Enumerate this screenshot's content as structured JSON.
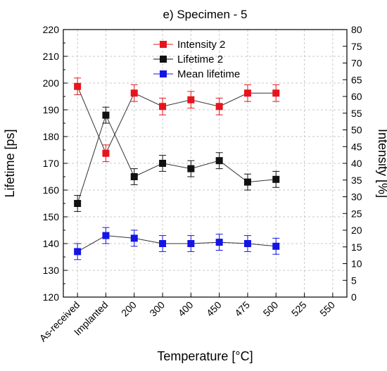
{
  "chart_data": {
    "type": "line",
    "title": "e) Specimen - 5",
    "xlabel": "Temperature [°C]",
    "ylabel_left": "Lifetime  [ps]",
    "ylabel_right": "Intensity [%]",
    "categories": [
      "As-received",
      "Implanted",
      "200",
      "300",
      "400",
      "450",
      "475",
      "500",
      "525",
      "550"
    ],
    "ylim_left": [
      120,
      220
    ],
    "yticks_left": [
      120,
      130,
      140,
      150,
      160,
      170,
      180,
      190,
      200,
      210,
      220
    ],
    "ylim_right": [
      0,
      80
    ],
    "yticks_right": [
      0,
      5,
      10,
      15,
      20,
      25,
      30,
      35,
      40,
      45,
      50,
      55,
      60,
      65,
      70,
      75,
      80
    ],
    "grid": true,
    "legend_position": "top-center",
    "series": [
      {
        "name": "Intensity 2",
        "axis": "right",
        "color": "#e8141c",
        "values": [
          63,
          43,
          61,
          57,
          59,
          57,
          61,
          61,
          null,
          null
        ],
        "errors": [
          2.5,
          2.5,
          2.5,
          2.5,
          2.5,
          2.5,
          2.5,
          2.5,
          null,
          null
        ]
      },
      {
        "name": "Lifetime 2",
        "axis": "left",
        "color": "#111111",
        "values": [
          155,
          188,
          165,
          170,
          168,
          171,
          163,
          164,
          null,
          null
        ],
        "errors": [
          3,
          3,
          3,
          3,
          3,
          3,
          3,
          3,
          null,
          null
        ]
      },
      {
        "name": "Mean lifetime",
        "axis": "left",
        "color": "#1414e6",
        "values": [
          137,
          143,
          142,
          140,
          140,
          140.5,
          140,
          139,
          null,
          null
        ],
        "errors": [
          3,
          3,
          3,
          3,
          3,
          3,
          3,
          3,
          null,
          null
        ]
      }
    ]
  }
}
